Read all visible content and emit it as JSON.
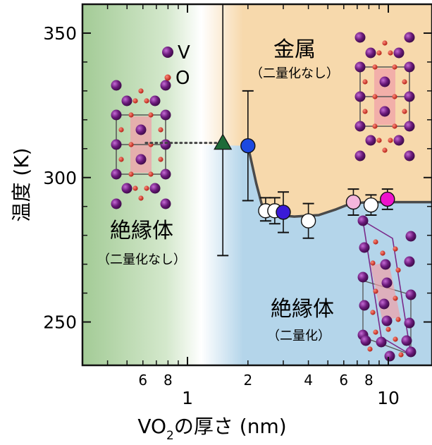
{
  "chart_data": {
    "type": "scatter",
    "x_scale": "log",
    "xlim": [
      0.3,
      16.5
    ],
    "ylim": [
      235,
      360
    ],
    "xlabel_main": "VO",
    "xlabel_subscript": "2",
    "xlabel_rest": "の厚さ (nm)",
    "ylabel": "温度 (K)",
    "x_major_ticks": [
      {
        "value": 1,
        "label": "1"
      },
      {
        "value": 10,
        "label": "10"
      }
    ],
    "x_minor_ticks": [
      {
        "value": 0.6,
        "label": "6"
      },
      {
        "value": 0.8,
        "label": "8"
      },
      {
        "value": 2,
        "label": "2"
      },
      {
        "value": 4,
        "label": "4"
      },
      {
        "value": 6,
        "label": "6"
      },
      {
        "value": 8,
        "label": "8"
      }
    ],
    "x_minor_unlabeled": [
      0.4,
      0.5,
      0.7,
      0.9,
      3,
      5,
      7,
      9
    ],
    "y_ticks": [
      {
        "value": 250,
        "label": "250"
      },
      {
        "value": 300,
        "label": "300"
      },
      {
        "value": 350,
        "label": "350"
      }
    ],
    "y_minor_ticks": [
      260,
      270,
      280,
      290,
      310,
      320,
      330,
      340
    ],
    "regions": {
      "insulator_undimerized": {
        "x_end": 1.5,
        "color": "#a9cf9d"
      },
      "metal": {
        "color": "#f7d9ac"
      },
      "insulator_dimerized": {
        "color": "#b4d5ea"
      }
    },
    "boundary": [
      [
        2.0,
        311
      ],
      [
        2.2,
        298
      ],
      [
        2.4,
        288
      ],
      [
        2.8,
        287
      ],
      [
        3.4,
        286.5
      ],
      [
        4.5,
        287
      ],
      [
        5.5,
        289
      ],
      [
        6.5,
        291
      ],
      [
        8,
        291.5
      ],
      [
        16.5,
        291.5
      ]
    ],
    "dotted_extension": [
      [
        0.62,
        312
      ],
      [
        1.5,
        312
      ]
    ],
    "points": [
      {
        "x": 1.5,
        "y": 312,
        "yerr_low": 273,
        "yerr_high": 360,
        "marker": "triangle",
        "color": "#1e6b38"
      },
      {
        "x": 2.0,
        "y": 311,
        "yerr_low": 292,
        "yerr_high": 330,
        "marker": "circle",
        "color": "#1c49e0"
      },
      {
        "x": 2.45,
        "y": 288.5,
        "yerr_low": 285,
        "yerr_high": 293,
        "marker": "circle",
        "color": "#ffffff"
      },
      {
        "x": 2.72,
        "y": 288.5,
        "yerr_low": 284,
        "yerr_high": 293,
        "marker": "circle",
        "color": "#ffffff"
      },
      {
        "x": 3.0,
        "y": 288,
        "yerr_low": 281,
        "yerr_high": 295,
        "marker": "circle",
        "color": "#3a1ad8"
      },
      {
        "x": 4.0,
        "y": 285,
        "yerr_low": 279,
        "yerr_high": 291,
        "marker": "circle",
        "color": "#ffffff"
      },
      {
        "x": 6.7,
        "y": 291.5,
        "yerr_low": 287,
        "yerr_high": 296,
        "marker": "circle",
        "color": "#f4b6dc"
      },
      {
        "x": 8.2,
        "y": 290.5,
        "yerr_low": 287,
        "yerr_high": 294,
        "marker": "circle",
        "color": "#ffffff"
      },
      {
        "x": 9.9,
        "y": 292.5,
        "yerr_low": 289,
        "yerr_high": 296,
        "marker": "circle",
        "color": "#ee12cc"
      }
    ],
    "legend": {
      "v_label": "V",
      "o_label": "O"
    },
    "annotations": {
      "metal_title": "金属",
      "metal_sub": "（二量化なし）",
      "ins_left_title": "絶縁体",
      "ins_left_sub": "（二量化なし）",
      "ins_right_title": "絶縁体",
      "ins_right_sub": "（二量化）"
    },
    "colors": {
      "v_atom": "#6a1a7a",
      "o_atom": "#d92b1e",
      "octahedron": "#f0a0a8",
      "triangle": "#1e6b38",
      "axis": "#111111",
      "boundary_line": "#4a4a4a"
    },
    "grid": false
  }
}
